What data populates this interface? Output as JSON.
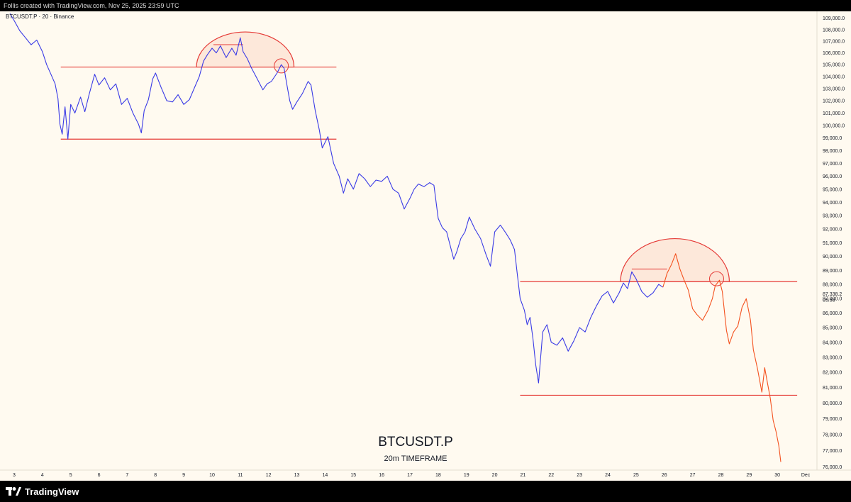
{
  "header": {
    "caption": "Follis created with TradingView.com, Nov 25, 2025 23:59 UTC"
  },
  "chart_header": {
    "symbol_line": "BTCUSDT.P · 20 · Binance"
  },
  "watermark": {
    "title": "BTCUSDT.P",
    "subtitle": "20m TIMEFRAME"
  },
  "footer": {
    "brand": "TradingView"
  },
  "colors": {
    "background": "#fffaf0",
    "price_line_past": "#3a3ae6",
    "price_line_recent": "#f4511e",
    "drawing": "#e53935",
    "arc_fill": "#fbd8c9"
  },
  "chart_data": {
    "type": "line",
    "title": "BTCUSDT.P",
    "subtitle": "20m TIMEFRAME",
    "xlabel": "",
    "ylabel": "",
    "x_axis": {
      "unit": "day of month",
      "ticks": [
        "3",
        "4",
        "5",
        "6",
        "7",
        "8",
        "9",
        "10",
        "11",
        "12",
        "13",
        "14",
        "15",
        "16",
        "17",
        "18",
        "19",
        "20",
        "21",
        "22",
        "23",
        "24",
        "25",
        "26",
        "27",
        "28",
        "29",
        "30",
        "Dec"
      ],
      "range": [
        2.6,
        31.4
      ]
    },
    "y_axis": {
      "scale": "log",
      "range": [
        75800,
        109600
      ],
      "ticks": [
        "109,000.0",
        "108,000.0",
        "107,000.0",
        "106,000.0",
        "105,000.0",
        "104,000.0",
        "103,000.0",
        "102,000.0",
        "101,000.0",
        "100,000.0",
        "99,000.0",
        "98,000.0",
        "97,000.0",
        "96,000.0",
        "95,000.0",
        "94,000.0",
        "93,000.0",
        "92,000.0",
        "91,000.0",
        "90,000.0",
        "89,000.0",
        "88,000.0",
        "87,000.0",
        "86,000.0",
        "85,000.0",
        "84,000.0",
        "83,000.0",
        "82,000.0",
        "81,000.0",
        "80,000.0",
        "79,000.0",
        "78,000.0",
        "77,000.0",
        "76,000.0"
      ]
    },
    "current_price": {
      "label": "87,338.2",
      "value": 87338.2,
      "countdown": "05:56"
    },
    "series": [
      {
        "color": "#3a3ae6",
        "points": [
          [
            2.85,
            109400
          ],
          [
            3.0,
            108800
          ],
          [
            3.2,
            107900
          ],
          [
            3.4,
            107300
          ],
          [
            3.6,
            106700
          ],
          [
            3.8,
            107100
          ],
          [
            4.0,
            106100
          ],
          [
            4.15,
            105000
          ],
          [
            4.3,
            104200
          ],
          [
            4.45,
            103400
          ],
          [
            4.55,
            102200
          ],
          [
            4.62,
            100100
          ],
          [
            4.7,
            99300
          ],
          [
            4.8,
            101500
          ],
          [
            4.9,
            98900
          ],
          [
            5.0,
            101700
          ],
          [
            5.15,
            101000
          ],
          [
            5.35,
            102300
          ],
          [
            5.5,
            101100
          ],
          [
            5.65,
            102500
          ],
          [
            5.85,
            104200
          ],
          [
            6.0,
            103300
          ],
          [
            6.2,
            103900
          ],
          [
            6.4,
            102900
          ],
          [
            6.6,
            103400
          ],
          [
            6.8,
            101700
          ],
          [
            7.0,
            102200
          ],
          [
            7.2,
            101000
          ],
          [
            7.4,
            100100
          ],
          [
            7.5,
            99400
          ],
          [
            7.6,
            101200
          ],
          [
            7.75,
            102100
          ],
          [
            7.9,
            103800
          ],
          [
            8.0,
            104300
          ],
          [
            8.2,
            103100
          ],
          [
            8.4,
            102000
          ],
          [
            8.6,
            101900
          ],
          [
            8.8,
            102500
          ],
          [
            9.0,
            101700
          ],
          [
            9.2,
            102100
          ],
          [
            9.4,
            103200
          ],
          [
            9.55,
            104000
          ],
          [
            9.7,
            105300
          ],
          [
            9.85,
            105900
          ],
          [
            10.0,
            106400
          ],
          [
            10.15,
            106000
          ],
          [
            10.3,
            106600
          ],
          [
            10.5,
            105600
          ],
          [
            10.7,
            106400
          ],
          [
            10.85,
            105800
          ],
          [
            11.0,
            107300
          ],
          [
            11.1,
            106100
          ],
          [
            11.25,
            105500
          ],
          [
            11.4,
            104700
          ],
          [
            11.6,
            103800
          ],
          [
            11.8,
            102900
          ],
          [
            11.95,
            103400
          ],
          [
            12.1,
            103600
          ],
          [
            12.3,
            104300
          ],
          [
            12.45,
            105000
          ],
          [
            12.55,
            104700
          ],
          [
            12.65,
            103300
          ],
          [
            12.75,
            102000
          ],
          [
            12.85,
            101300
          ],
          [
            13.0,
            101900
          ],
          [
            13.2,
            102600
          ],
          [
            13.4,
            103600
          ],
          [
            13.5,
            103300
          ],
          [
            13.65,
            101200
          ],
          [
            13.8,
            99600
          ],
          [
            13.9,
            98200
          ],
          [
            14.1,
            99100
          ],
          [
            14.3,
            97000
          ],
          [
            14.5,
            96000
          ],
          [
            14.65,
            94700
          ],
          [
            14.8,
            95800
          ],
          [
            15.0,
            95000
          ],
          [
            15.2,
            96200
          ],
          [
            15.4,
            95800
          ],
          [
            15.6,
            95200
          ],
          [
            15.8,
            95700
          ],
          [
            16.0,
            95600
          ],
          [
            16.2,
            96000
          ],
          [
            16.4,
            95000
          ],
          [
            16.6,
            94700
          ],
          [
            16.8,
            93500
          ],
          [
            17.0,
            94300
          ],
          [
            17.15,
            95000
          ],
          [
            17.3,
            95400
          ],
          [
            17.5,
            95200
          ],
          [
            17.7,
            95500
          ],
          [
            17.85,
            95300
          ],
          [
            18.0,
            92800
          ],
          [
            18.15,
            92100
          ],
          [
            18.3,
            91800
          ],
          [
            18.45,
            90600
          ],
          [
            18.55,
            89800
          ],
          [
            18.65,
            90300
          ],
          [
            18.8,
            91300
          ],
          [
            18.95,
            91800
          ],
          [
            19.1,
            92900
          ],
          [
            19.3,
            92000
          ],
          [
            19.5,
            91300
          ],
          [
            19.7,
            90100
          ],
          [
            19.85,
            89300
          ],
          [
            20.0,
            91800
          ],
          [
            20.2,
            92300
          ],
          [
            20.4,
            91700
          ],
          [
            20.55,
            91200
          ],
          [
            20.7,
            90500
          ],
          [
            20.8,
            88700
          ],
          [
            20.9,
            87000
          ],
          [
            21.05,
            86200
          ],
          [
            21.15,
            85200
          ],
          [
            21.25,
            85700
          ],
          [
            21.35,
            84300
          ],
          [
            21.45,
            82500
          ],
          [
            21.55,
            81300
          ],
          [
            21.7,
            84700
          ],
          [
            21.85,
            85200
          ],
          [
            22.0,
            84000
          ],
          [
            22.2,
            83800
          ],
          [
            22.4,
            84300
          ],
          [
            22.6,
            83400
          ],
          [
            22.8,
            84100
          ],
          [
            23.0,
            85000
          ],
          [
            23.2,
            84700
          ],
          [
            23.4,
            85700
          ],
          [
            23.6,
            86500
          ],
          [
            23.8,
            87200
          ],
          [
            24.0,
            87500
          ],
          [
            24.2,
            86700
          ],
          [
            24.4,
            87400
          ],
          [
            24.55,
            88100
          ],
          [
            24.7,
            87700
          ],
          [
            24.85,
            88900
          ],
          [
            25.0,
            88400
          ],
          [
            25.2,
            87500
          ],
          [
            25.4,
            87100
          ],
          [
            25.6,
            87400
          ],
          [
            25.8,
            88000
          ],
          [
            25.95,
            87800
          ]
        ]
      },
      {
        "color": "#f4511e",
        "points": [
          [
            25.95,
            87800
          ],
          [
            26.1,
            88800
          ],
          [
            26.25,
            89400
          ],
          [
            26.4,
            90200
          ],
          [
            26.55,
            89100
          ],
          [
            26.7,
            88300
          ],
          [
            26.85,
            87600
          ],
          [
            27.0,
            86300
          ],
          [
            27.15,
            85900
          ],
          [
            27.35,
            85500
          ],
          [
            27.55,
            86200
          ],
          [
            27.7,
            87000
          ],
          [
            27.8,
            87900
          ],
          [
            27.95,
            88300
          ],
          [
            28.05,
            87500
          ],
          [
            28.2,
            84800
          ],
          [
            28.3,
            83900
          ],
          [
            28.45,
            84700
          ],
          [
            28.6,
            85100
          ],
          [
            28.75,
            86400
          ],
          [
            28.9,
            87000
          ],
          [
            29.05,
            85500
          ],
          [
            29.15,
            83500
          ],
          [
            29.3,
            82200
          ],
          [
            29.45,
            80700
          ],
          [
            29.55,
            82300
          ],
          [
            29.65,
            81300
          ],
          [
            29.75,
            80300
          ],
          [
            29.85,
            78900
          ],
          [
            29.95,
            78200
          ],
          [
            30.05,
            77300
          ],
          [
            30.12,
            76300
          ]
        ]
      }
    ],
    "drawings": {
      "support_resistance_levels": [
        {
          "from": 4.65,
          "to": 14.4,
          "price": 104800
        },
        {
          "from": 4.65,
          "to": 14.4,
          "price": 98900
        },
        {
          "from": 20.9,
          "to": 30.7,
          "price": 88200
        },
        {
          "from": 20.9,
          "to": 30.7,
          "price": 80500
        }
      ],
      "shoulder_lines": [
        {
          "from": 10.05,
          "to": 11.1,
          "price": 106700
        },
        {
          "from": 24.85,
          "to": 26.1,
          "price": 89100
        }
      ],
      "arcs": [
        {
          "from": 9.45,
          "to": 12.9,
          "base": 104800,
          "peak": 107800
        },
        {
          "from": 24.45,
          "to": 28.3,
          "base": 88200,
          "peak": 91300
        }
      ],
      "circles": [
        {
          "x": 12.45,
          "price": 104900
        },
        {
          "x": 27.85,
          "price": 88400
        }
      ]
    }
  }
}
